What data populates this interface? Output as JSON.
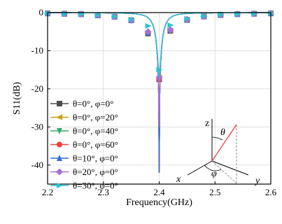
{
  "chart_data": {
    "type": "line",
    "title": "",
    "xlabel": "Frequency(GHz)",
    "ylabel": "S11(dB)",
    "xlim": [
      2.2,
      2.6
    ],
    "ylim": [
      -45,
      0
    ],
    "xticks": [
      2.2,
      2.3,
      2.4,
      2.5,
      2.6
    ],
    "yticks": [
      0,
      -10,
      -20,
      -30,
      -40
    ],
    "xtick_labels": [
      "2.2",
      "2.3",
      "2.4",
      "2.5",
      "2.6"
    ],
    "ytick_labels": [
      "0",
      "-10",
      "-20",
      "-30",
      "-40"
    ],
    "grid": true,
    "legend_position": "left",
    "marker_x": [
      2.2,
      2.23,
      2.26,
      2.29,
      2.32,
      2.35,
      2.38,
      2.4,
      2.42,
      2.45,
      2.48,
      2.51,
      2.54,
      2.57,
      2.6
    ],
    "series": [
      {
        "name": "θ=0°, φ=0°",
        "color": "#4d4d4d",
        "marker": "square",
        "min": -42.0,
        "marker_y": [
          -0.2,
          -0.3,
          -0.4,
          -0.7,
          -1.1,
          -2.0,
          -5.5,
          -17.5,
          -4.8,
          -1.9,
          -1.0,
          -0.6,
          -0.4,
          -0.3,
          -0.2
        ]
      },
      {
        "name": "θ=0°, φ=20°",
        "color": "#c9a010",
        "marker": "triangle-left",
        "min": -42.0,
        "marker_y": [
          -0.2,
          -0.3,
          -0.4,
          -0.7,
          -1.1,
          -2.0,
          -5.5,
          -17.0,
          -4.8,
          -1.9,
          -1.0,
          -0.6,
          -0.4,
          -0.3,
          -0.2
        ]
      },
      {
        "name": "θ=0°, φ=40°",
        "color": "#3aa86b",
        "marker": "triangle-down",
        "min": -42.0,
        "marker_y": [
          -0.2,
          -0.3,
          -0.4,
          -0.7,
          -1.1,
          -2.0,
          -5.5,
          -17.5,
          -4.8,
          -1.9,
          -1.0,
          -0.6,
          -0.4,
          -0.3,
          -0.2
        ]
      },
      {
        "name": "θ=0°, φ=60°",
        "color": "#e8433f",
        "marker": "circle",
        "min": -42.0,
        "marker_y": [
          -0.2,
          -0.3,
          -0.4,
          -0.7,
          -1.1,
          -2.0,
          -5.5,
          -17.5,
          -4.8,
          -1.9,
          -1.0,
          -0.6,
          -0.4,
          -0.3,
          -0.2
        ]
      },
      {
        "name": "θ=10°, φ=0°",
        "color": "#2f6fd6",
        "marker": "triangle-up",
        "min": -42.0,
        "marker_y": [
          -0.2,
          -0.3,
          -0.4,
          -0.7,
          -1.1,
          -2.0,
          -5.3,
          -16.5,
          -4.6,
          -1.9,
          -1.0,
          -0.6,
          -0.4,
          -0.3,
          -0.2
        ]
      },
      {
        "name": "θ=20°, φ=0°",
        "color": "#a873d6",
        "marker": "diamond",
        "min": -30.0,
        "marker_y": [
          -0.2,
          -0.3,
          -0.4,
          -0.7,
          -1.1,
          -2.0,
          -5.0,
          -17.0,
          -4.5,
          -1.8,
          -1.0,
          -0.6,
          -0.4,
          -0.3,
          -0.2
        ]
      },
      {
        "name": "θ=30°, φ=0°",
        "color": "#29c2d4",
        "marker": "triangle-right",
        "min": -17.0,
        "marker_y": [
          -0.2,
          -0.3,
          -0.4,
          -0.6,
          -1.0,
          -1.8,
          -3.5,
          -15.0,
          -3.3,
          -1.6,
          -0.9,
          -0.5,
          -0.4,
          -0.3,
          -0.2
        ]
      }
    ]
  },
  "inset": {
    "z_label": "z",
    "x_label": "x",
    "y_label": "y",
    "theta_label": "θ",
    "phi_label": "φ"
  }
}
